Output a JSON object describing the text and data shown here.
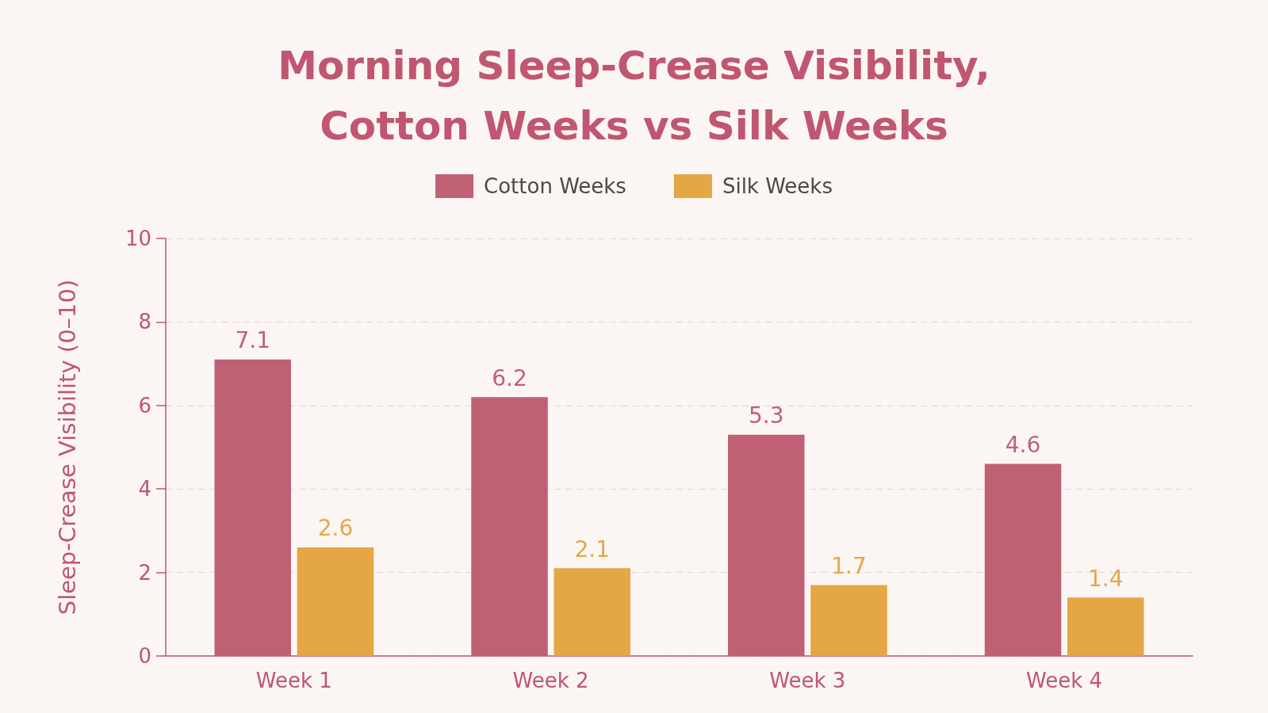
{
  "chart_data": {
    "type": "bar",
    "title": "Morning Sleep-Crease Visibility,\nCotton Weeks vs Silk Weeks",
    "ylabel": "Sleep-Crease Visibility (0–10)",
    "categories": [
      "Week 1",
      "Week 2",
      "Week 3",
      "Week 4"
    ],
    "series": [
      {
        "name": "Cotton Weeks",
        "color": "#c06074",
        "values": [
          7.1,
          6.2,
          5.3,
          4.6
        ]
      },
      {
        "name": "Silk Weeks",
        "color": "#e5a645",
        "values": [
          2.6,
          2.1,
          1.7,
          1.4
        ]
      }
    ],
    "ylim": [
      0,
      10
    ],
    "yticks": [
      0,
      2,
      4,
      6,
      8,
      10
    ],
    "grid": "y",
    "legend": "top",
    "data_labels": true
  }
}
